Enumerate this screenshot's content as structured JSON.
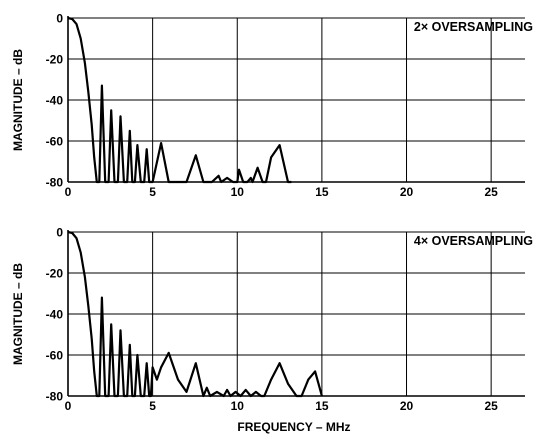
{
  "chart_data": [
    {
      "type": "line",
      "annotation": "2× OVERSAMPLING",
      "ylabel": "MAGNITUDE – dB",
      "xlabel": "",
      "xlim": [
        0,
        27
      ],
      "ylim": [
        -80,
        0
      ],
      "xticks": [
        0,
        5,
        10,
        15,
        20,
        25
      ],
      "yticks": [
        0,
        -20,
        -40,
        -60,
        -80
      ],
      "grid": true,
      "series": [
        {
          "x": [
            0,
            0.25,
            0.5,
            0.75,
            1.0,
            1.2,
            1.4,
            1.55,
            1.7,
            1.8,
            1.85,
            2.0,
            2.2,
            2.35,
            2.4,
            2.55,
            2.75,
            2.9,
            2.95,
            3.1,
            3.3,
            3.45,
            3.5,
            3.65,
            3.8,
            3.9,
            3.95,
            4.1,
            4.3,
            4.45,
            4.5,
            4.65,
            4.8,
            4.9,
            5.0,
            5.5,
            5.95,
            6.5,
            7.0,
            7.55,
            8.0,
            8.5,
            8.9,
            9.05,
            9.4,
            9.75,
            10.0,
            10.1,
            10.35,
            10.6,
            10.8,
            10.9,
            11.2,
            11.5,
            11.7,
            12.0,
            12.5,
            13.0,
            13.2
          ],
          "y": [
            0,
            -0.5,
            -3,
            -10,
            -22,
            -36,
            -52,
            -68,
            -80,
            -80,
            -80,
            -33,
            -80,
            -80,
            -80,
            -45,
            -80,
            -80,
            -80,
            -48,
            -80,
            -80,
            -80,
            -55,
            -80,
            -80,
            -80,
            -62,
            -80,
            -80,
            -80,
            -64,
            -80,
            -80,
            -80,
            -61,
            -80,
            -80,
            -80,
            -67,
            -80,
            -80,
            -77,
            -80,
            -78,
            -80,
            -80,
            -74,
            -80,
            -80,
            -78,
            -80,
            -73,
            -80,
            -80,
            -68,
            -62,
            -80,
            -80
          ]
        }
      ]
    },
    {
      "type": "line",
      "annotation": "4× OVERSAMPLING",
      "ylabel": "MAGNITUDE – dB",
      "xlabel": "FREQUENCY – MHz",
      "xlim": [
        0,
        27
      ],
      "ylim": [
        -80,
        0
      ],
      "xticks": [
        0,
        5,
        10,
        15,
        20,
        25
      ],
      "yticks": [
        0,
        -20,
        -40,
        -60,
        -80
      ],
      "grid": true,
      "series": [
        {
          "x": [
            0,
            0.25,
            0.5,
            0.75,
            1.0,
            1.2,
            1.4,
            1.55,
            1.7,
            1.8,
            1.85,
            2.0,
            2.2,
            2.35,
            2.4,
            2.55,
            2.75,
            2.9,
            2.95,
            3.1,
            3.3,
            3.45,
            3.5,
            3.65,
            3.8,
            3.9,
            3.95,
            4.1,
            4.3,
            4.45,
            4.5,
            4.65,
            4.8,
            4.9,
            5.0,
            5.25,
            5.5,
            5.95,
            6.5,
            7.0,
            7.55,
            8.0,
            8.2,
            8.4,
            8.8,
            9.2,
            9.4,
            9.6,
            9.9,
            10.2,
            10.5,
            10.8,
            11.1,
            11.4,
            11.6,
            12.0,
            12.5,
            13.0,
            13.5,
            13.8,
            14.2,
            14.6,
            15.0
          ],
          "y": [
            0,
            -0.5,
            -3,
            -10,
            -22,
            -36,
            -52,
            -68,
            -80,
            -80,
            -80,
            -32,
            -80,
            -80,
            -80,
            -45,
            -80,
            -80,
            -80,
            -48,
            -80,
            -80,
            -80,
            -55,
            -80,
            -80,
            -80,
            -60,
            -80,
            -80,
            -80,
            -64,
            -80,
            -80,
            -66,
            -72,
            -66,
            -59,
            -72,
            -78,
            -64,
            -80,
            -76,
            -80,
            -78,
            -80,
            -77,
            -80,
            -78,
            -80,
            -77,
            -80,
            -78,
            -80,
            -80,
            -72,
            -64,
            -74,
            -80,
            -80,
            -72,
            -68,
            -80
          ]
        }
      ]
    }
  ]
}
